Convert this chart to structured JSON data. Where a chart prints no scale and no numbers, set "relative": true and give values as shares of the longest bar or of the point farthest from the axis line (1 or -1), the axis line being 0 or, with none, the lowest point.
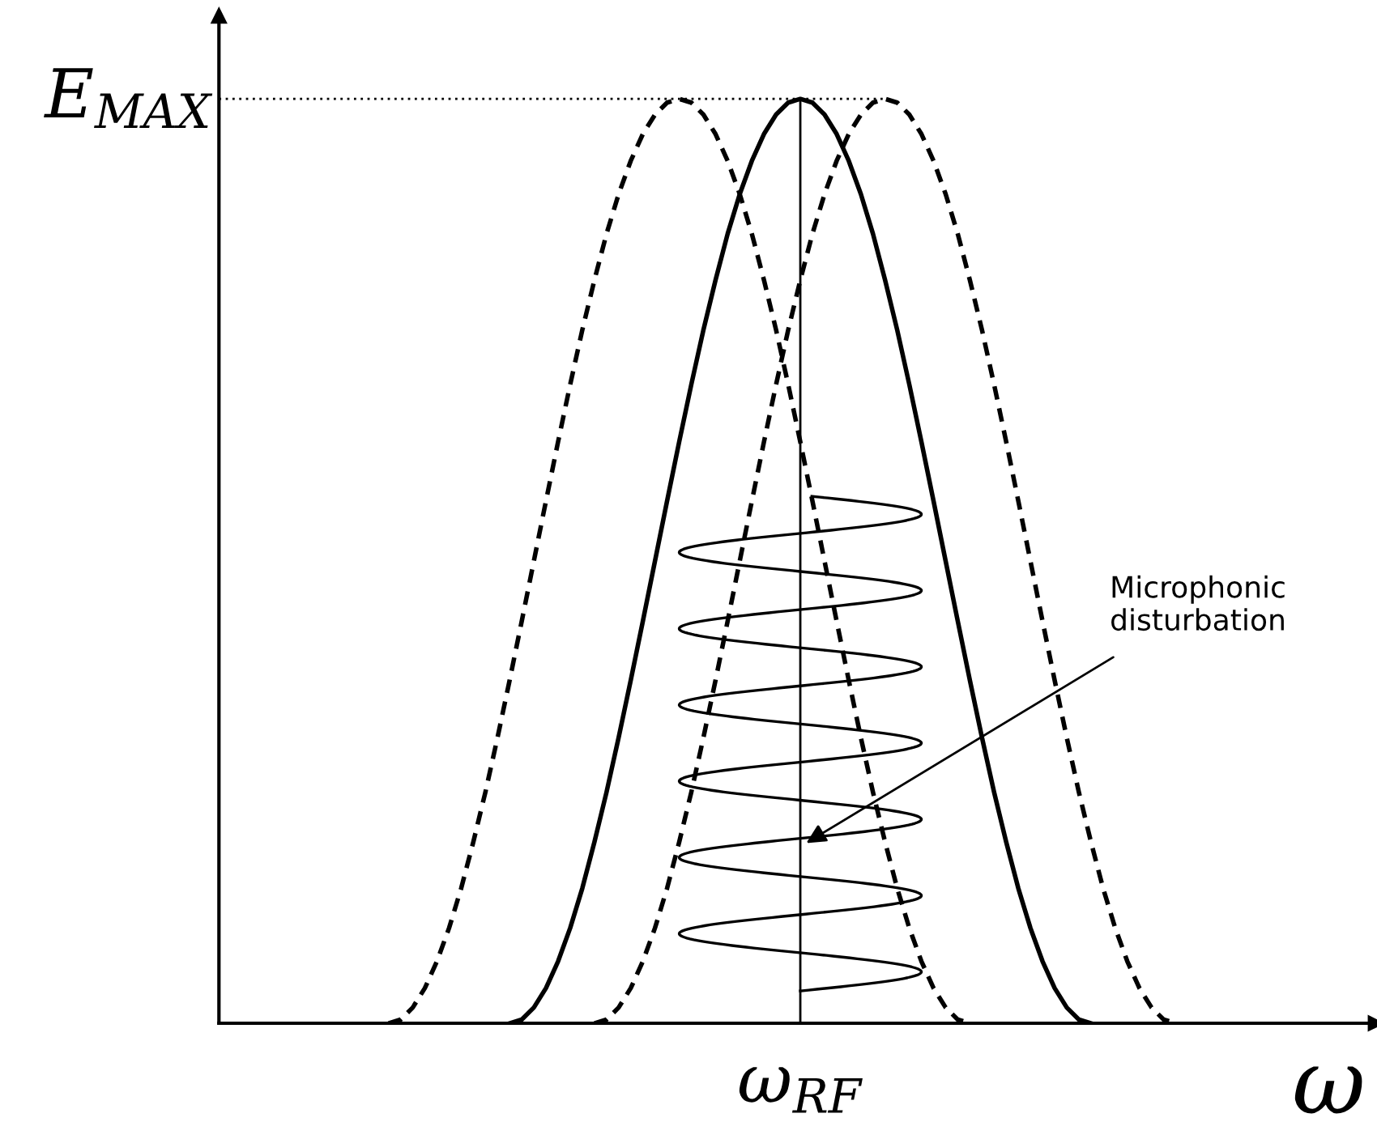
{
  "chart_data": {
    "type": "line",
    "relative": true,
    "xlabel": "ω",
    "marker": "none",
    "legend": false,
    "categories": [
      null,
      null,
      null,
      null,
      null,
      null,
      null,
      null,
      null,
      null,
      null,
      null,
      null,
      null,
      null,
      null,
      null,
      null,
      null,
      null,
      null,
      null,
      null,
      null,
      null,
      null,
      null,
      null,
      null,
      null,
      null,
      null,
      null,
      null,
      null,
      null,
      null,
      null,
      null,
      null,
      null,
      null,
      null,
      null,
      null,
      null,
      null,
      null,
      null,
      null,
      null,
      null,
      null,
      null,
      null,
      null,
      null,
      null,
      null,
      null,
      null,
      null,
      null,
      null,
      null,
      null,
      null,
      null,
      null,
      null,
      null,
      null,
      null,
      null,
      null,
      null,
      null,
      null,
      null,
      null,
      null,
      null,
      null,
      null,
      null,
      null,
      null,
      null,
      null,
      null,
      null,
      null,
      null,
      null,
      null,
      null
    ],
    "series": [
      {
        "color": "#000000",
        "line_style": "solid",
        "values": [
          null,
          null,
          null,
          null,
          null,
          null,
          null,
          null,
          null,
          null,
          null,
          null,
          null,
          null,
          null,
          null,
          null,
          null,
          null,
          null,
          null,
          null,
          null,
          null,
          0,
          0.004,
          0.017,
          0.038,
          0.067,
          0.103,
          0.146,
          0.196,
          0.25,
          0.309,
          0.371,
          0.435,
          0.5,
          0.565,
          0.629,
          0.691,
          0.75,
          0.804,
          0.854,
          0.897,
          0.933,
          0.962,
          0.983,
          0.996,
          1,
          0.996,
          0.983,
          0.962,
          0.933,
          0.897,
          0.854,
          0.804,
          0.75,
          0.691,
          0.629,
          0.565,
          0.5,
          0.435,
          0.371,
          0.309,
          0.25,
          0.196,
          0.146,
          0.103,
          0.067,
          0.038,
          0.017,
          0.004,
          0,
          null,
          null,
          null,
          null,
          null,
          null,
          null,
          null,
          null,
          null,
          null,
          null,
          null,
          null,
          null,
          null,
          null,
          null,
          null,
          null,
          null,
          null,
          null
        ]
      },
      {
        "color": "#000000",
        "line_style": "dashed",
        "values": [
          null,
          null,
          null,
          null,
          null,
          null,
          null,
          null,
          null,
          null,
          null,
          null,
          null,
          null,
          0,
          0.004,
          0.017,
          0.038,
          0.067,
          0.103,
          0.146,
          0.196,
          0.25,
          0.309,
          0.371,
          0.435,
          0.5,
          0.565,
          0.629,
          0.691,
          0.75,
          0.804,
          0.854,
          0.897,
          0.933,
          0.962,
          0.983,
          0.996,
          1,
          0.996,
          0.983,
          0.962,
          0.933,
          0.897,
          0.854,
          0.804,
          0.75,
          0.691,
          0.629,
          0.565,
          0.5,
          0.435,
          0.371,
          0.309,
          0.25,
          0.196,
          0.146,
          0.103,
          0.067,
          0.038,
          0.017,
          0.004,
          0,
          null,
          null,
          null,
          null,
          null,
          null,
          null,
          null,
          null,
          null,
          null,
          null,
          null,
          null,
          null,
          null,
          null,
          null,
          null,
          null,
          null,
          null,
          null,
          null,
          null,
          null,
          null,
          null,
          null,
          null,
          null,
          null,
          null
        ]
      },
      {
        "color": "#000000",
        "line_style": "dashed",
        "values": [
          null,
          null,
          null,
          null,
          null,
          null,
          null,
          null,
          null,
          null,
          null,
          null,
          null,
          null,
          null,
          null,
          null,
          null,
          null,
          null,
          null,
          null,
          null,
          null,
          null,
          null,
          null,
          null,
          null,
          null,
          null,
          0,
          0.004,
          0.017,
          0.038,
          0.067,
          0.103,
          0.146,
          0.196,
          0.25,
          0.309,
          0.371,
          0.435,
          0.5,
          0.565,
          0.629,
          0.691,
          0.75,
          0.804,
          0.854,
          0.897,
          0.933,
          0.962,
          0.983,
          0.996,
          1,
          0.996,
          0.983,
          0.962,
          0.933,
          0.897,
          0.854,
          0.804,
          0.75,
          0.691,
          0.629,
          0.565,
          0.5,
          0.435,
          0.371,
          0.309,
          0.25,
          0.196,
          0.146,
          0.103,
          0.067,
          0.038,
          0.017,
          0.004,
          0,
          null,
          null,
          null,
          null,
          null,
          null,
          null,
          null,
          null,
          null,
          null,
          null,
          null,
          null,
          null,
          null
        ]
      }
    ],
    "ref_lines": [
      {
        "axis": "y",
        "value": 1,
        "label": "E$_{MAX}$",
        "line_style": "dotted",
        "color": "#000000"
      }
    ],
    "annotations": [
      "ω$_{RF}$",
      "Microphonic\ndisturbation"
    ]
  }
}
